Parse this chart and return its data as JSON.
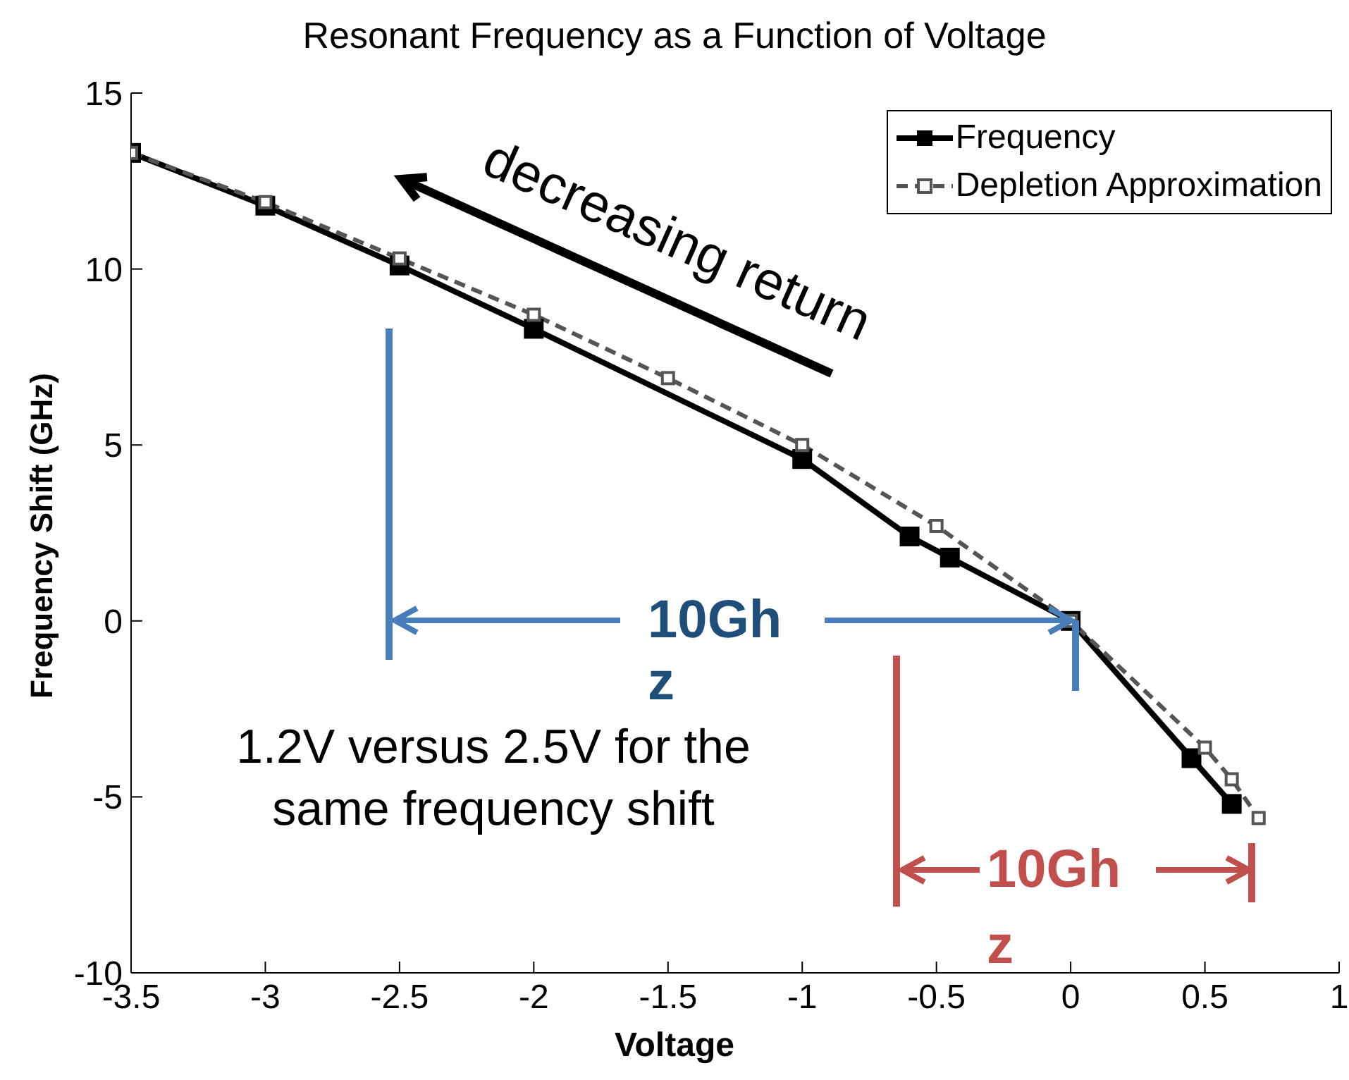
{
  "chart_data": {
    "type": "line",
    "title": "Resonant Frequency as a Function of Voltage",
    "xlabel": "Voltage",
    "ylabel": "Frequency Shift (GHz)",
    "xlim": [
      -3.5,
      1
    ],
    "xticks": [
      -3.5,
      -3,
      -2.5,
      -2,
      -1.5,
      -1,
      -0.5,
      0,
      0.5,
      1
    ],
    "ylim": [
      -10,
      15
    ],
    "yticks": [
      -10,
      -5,
      0,
      5,
      10,
      15
    ],
    "series": [
      {
        "name": "Frequency",
        "color": "#000000",
        "line_style": "solid",
        "x": [
          -3.5,
          -3,
          -2.5,
          -2,
          -1,
          -0.6,
          -0.45,
          0,
          0.45,
          0.6
        ],
        "values": [
          13.3,
          11.8,
          10.1,
          8.3,
          4.6,
          2.4,
          1.8,
          0,
          -3.9,
          -5.2
        ]
      },
      {
        "name": "Depletion Approximation",
        "color": "#555555",
        "line_style": "dashed",
        "x": [
          -3.5,
          -3,
          -2.5,
          -2,
          -1.5,
          -1,
          -0.5,
          0,
          0.5,
          0.6,
          0.7
        ],
        "values": [
          13.3,
          11.9,
          10.3,
          8.7,
          6.9,
          5.0,
          2.7,
          0,
          -3.6,
          -4.5,
          -5.6
        ]
      }
    ],
    "marker": "square",
    "grid": false,
    "legend": "top right",
    "annotations": [
      "decreasing return",
      {
        "text": "10Ghz",
        "x": 0,
        "y": 0
      },
      "1.2V versus 2.5V for the same frequency shift",
      "10Ghz"
    ]
  }
}
